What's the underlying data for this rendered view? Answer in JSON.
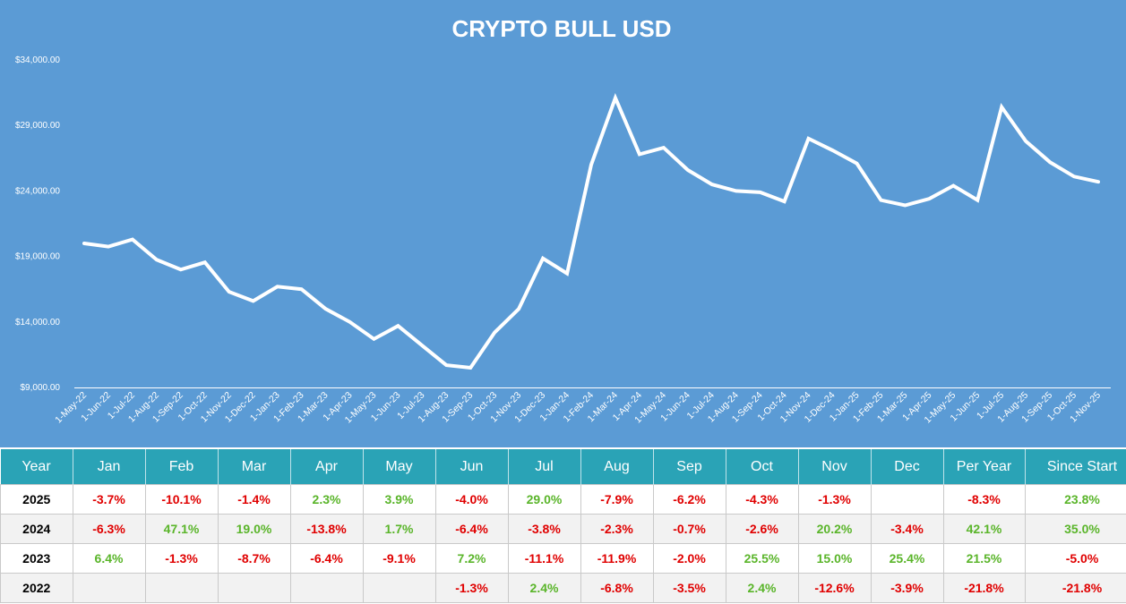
{
  "chart_data": {
    "type": "line",
    "title": "CRYPTO BULL USD",
    "xlabel": "",
    "ylabel": "",
    "ylim": [
      9000,
      34000
    ],
    "yticks": [
      9000,
      14000,
      19000,
      24000,
      29000,
      34000
    ],
    "ytick_labels": [
      "$9,000.00",
      "$14,000.00",
      "$19,000.00",
      "$24,000.00",
      "$29,000.00",
      "$34,000.00"
    ],
    "grid": false,
    "categories": [
      "1-May-22",
      "1-Jun-22",
      "1-Jul-22",
      "1-Aug-22",
      "1-Sep-22",
      "1-Oct-22",
      "1-Nov-22",
      "1-Dec-22",
      "1-Jan-23",
      "1-Feb-23",
      "1-Mar-23",
      "1-Apr-23",
      "1-May-23",
      "1-Jun-23",
      "1-Jul-23",
      "1-Aug-23",
      "1-Sep-23",
      "1-Oct-23",
      "1-Nov-23",
      "1-Dec-23",
      "1-Jan-24",
      "1-Feb-24",
      "1-Mar-24",
      "1-Apr-24",
      "1-May-24",
      "1-Jun-24",
      "1-Jul-24",
      "1-Aug-24",
      "1-Sep-24",
      "1-Oct-24",
      "1-Nov-24",
      "1-Dec-24",
      "1-Jan-25",
      "1-Feb-25",
      "1-Mar-25",
      "1-Apr-25",
      "1-May-25",
      "1-Jun-25",
      "1-Jul-25",
      "1-Aug-25",
      "1-Sep-25",
      "1-Oct-25",
      "1-Nov-25"
    ],
    "values": [
      20000,
      19750,
      20300,
      18750,
      18000,
      18550,
      16300,
      15600,
      16700,
      16500,
      15000,
      14000,
      12700,
      13700,
      12200,
      10700,
      10500,
      13200,
      15000,
      18850,
      17700,
      26000,
      31100,
      26800,
      27300,
      25600,
      24500,
      24000,
      23900,
      23200,
      28000,
      27100,
      26100,
      23300,
      22900,
      23400,
      24400,
      23300,
      30400,
      27800,
      26200,
      25100,
      24700
    ],
    "colors": {
      "background": "#5b9bd5",
      "line": "#ffffff",
      "text": "#ffffff"
    }
  },
  "table": {
    "headers": [
      "Year",
      "Jan",
      "Feb",
      "Mar",
      "Apr",
      "May",
      "Jun",
      "Jul",
      "Aug",
      "Sep",
      "Oct",
      "Nov",
      "Dec",
      "Per Year",
      "Since Start"
    ],
    "rows": [
      [
        "2025",
        "-3.7%",
        "-10.1%",
        "-1.4%",
        "2.3%",
        "3.9%",
        "-4.0%",
        "29.0%",
        "-7.9%",
        "-6.2%",
        "-4.3%",
        "-1.3%",
        "",
        "-8.3%",
        "23.8%"
      ],
      [
        "2024",
        "-6.3%",
        "47.1%",
        "19.0%",
        "-13.8%",
        "1.7%",
        "-6.4%",
        "-3.8%",
        "-2.3%",
        "-0.7%",
        "-2.6%",
        "20.2%",
        "-3.4%",
        "42.1%",
        "35.0%"
      ],
      [
        "2023",
        "6.4%",
        "-1.3%",
        "-8.7%",
        "-6.4%",
        "-9.1%",
        "7.2%",
        "-11.1%",
        "-11.9%",
        "-2.0%",
        "25.5%",
        "15.0%",
        "25.4%",
        "21.5%",
        "-5.0%"
      ],
      [
        "2022",
        "",
        "",
        "",
        "",
        "",
        "-1.3%",
        "2.4%",
        "-6.8%",
        "-3.5%",
        "2.4%",
        "-12.6%",
        "-3.9%",
        "-21.8%",
        "-21.8%"
      ]
    ],
    "colors": {
      "header_bg": "#2aa3b6",
      "positive": "#5ab52a",
      "negative": "#e00000"
    }
  }
}
